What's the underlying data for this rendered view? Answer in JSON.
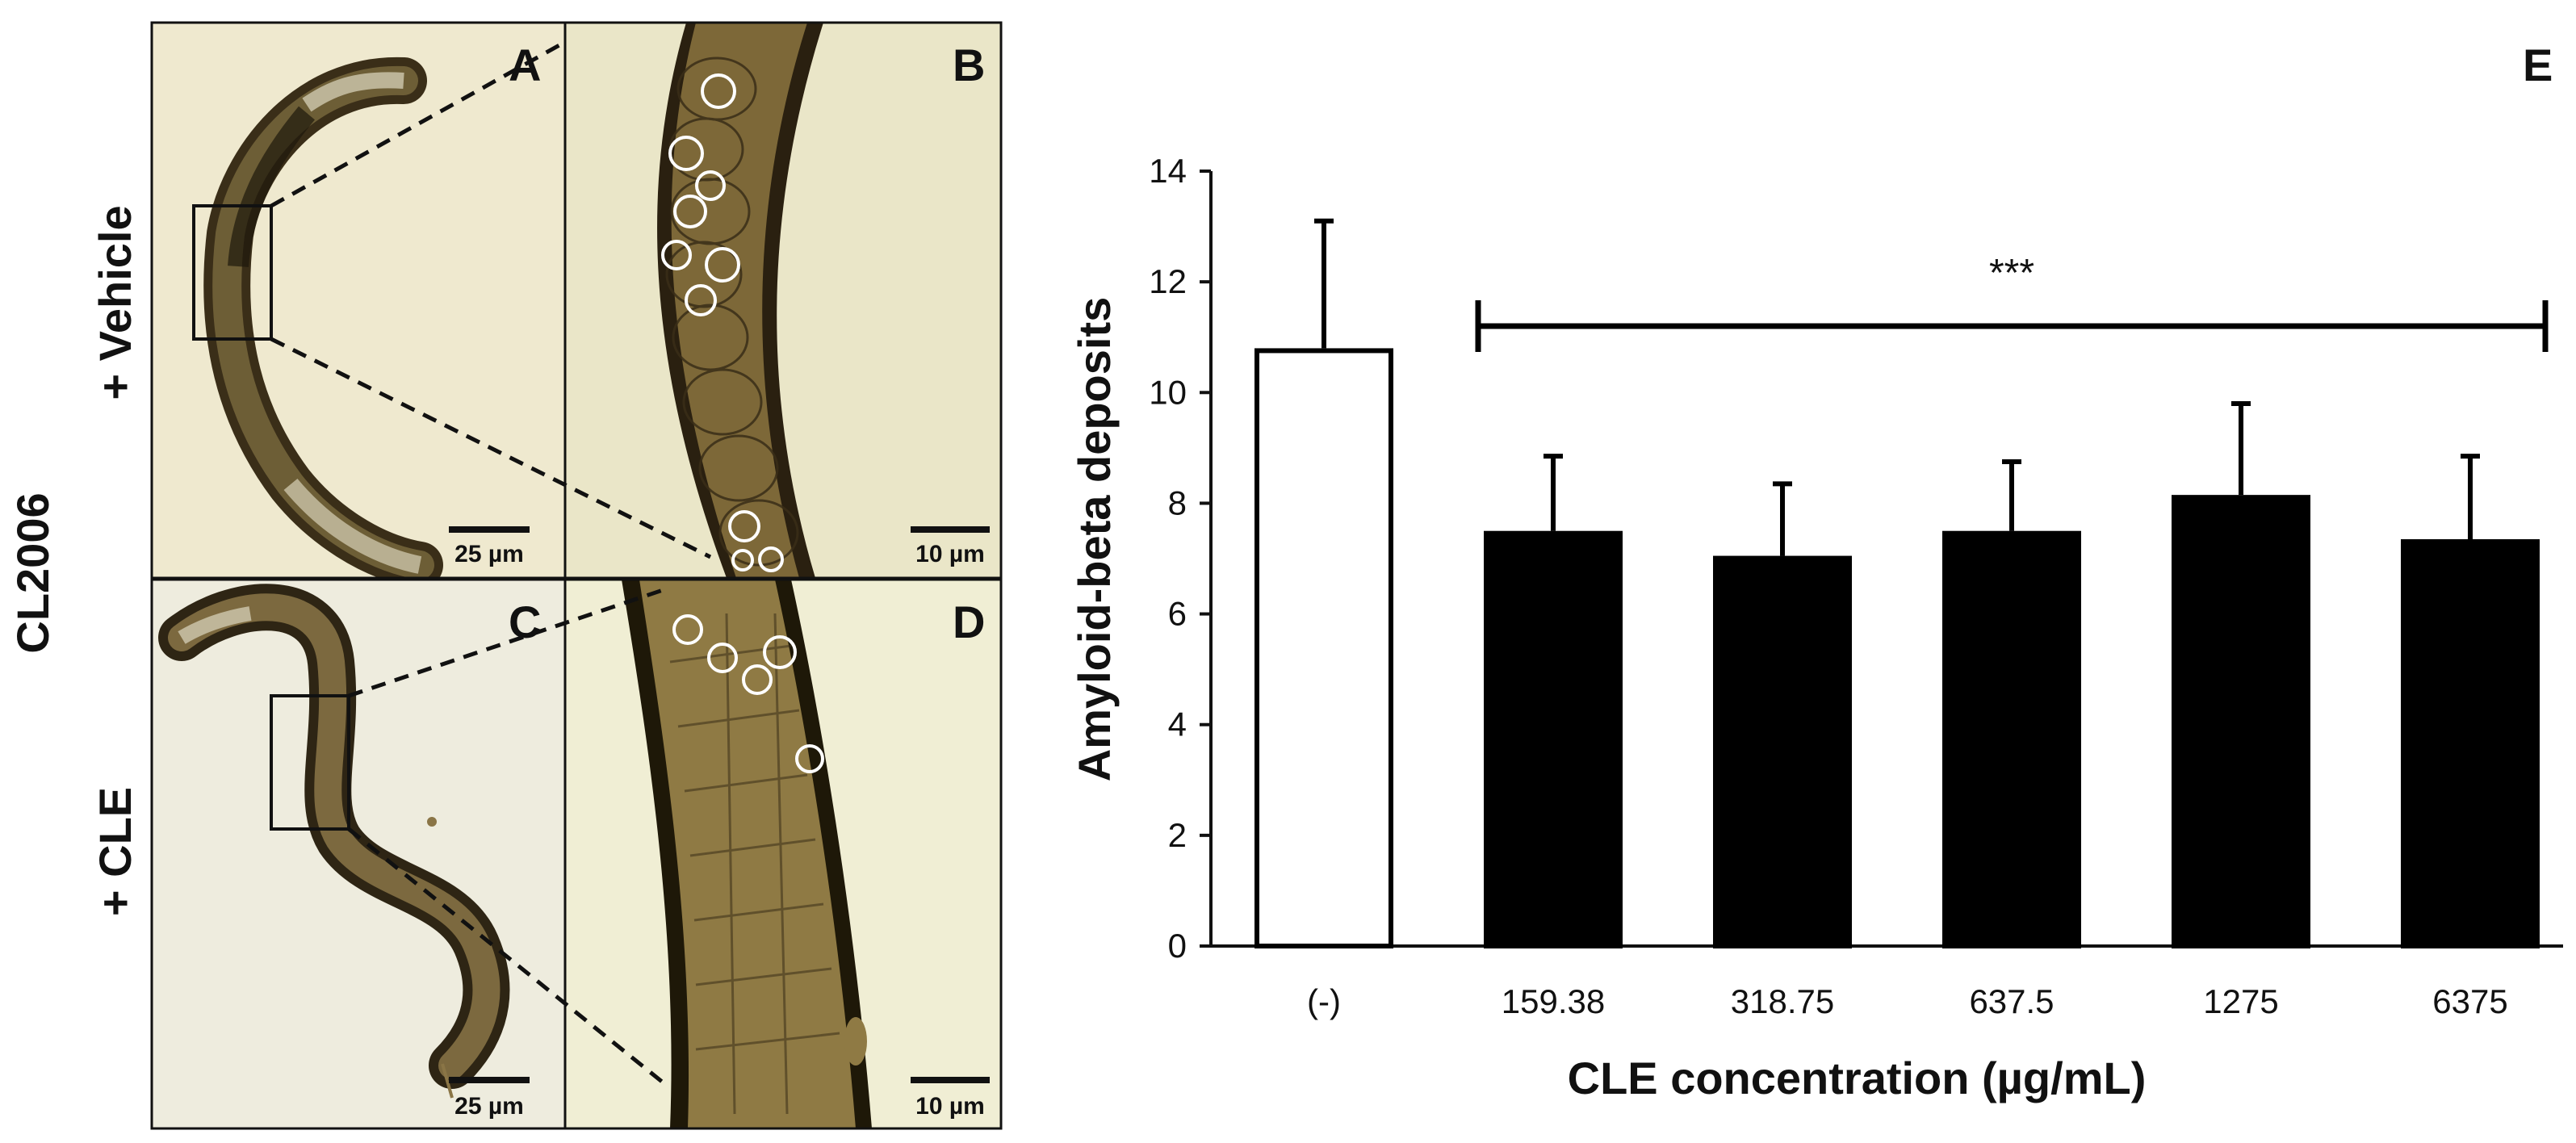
{
  "figure": {
    "strain_label": "CL2006",
    "row_labels": [
      "+ Vehicle",
      "+ CLE"
    ],
    "panels": [
      {
        "letter": "A",
        "scale_bar": "25 µm",
        "image": "whole worm, vehicle-treated"
      },
      {
        "letter": "B",
        "scale_bar": "10 µm",
        "image": "magnified region, vehicle-treated"
      },
      {
        "letter": "C",
        "scale_bar": "25 µm",
        "image": "whole worm, CLE-treated"
      },
      {
        "letter": "D",
        "scale_bar": "10 µm",
        "image": "magnified region, CLE-treated"
      }
    ],
    "chart_panel_letter": "E"
  },
  "colors": {
    "image_bg": "#efe9cf",
    "worm_dark": "#3a2e18",
    "worm_mid": "#7a6a3e",
    "bar_control": "#ffffff",
    "bar_treated": "#000000"
  },
  "chart_data": {
    "type": "bar",
    "title": "",
    "xlabel": "CLE concentration (µg/mL)",
    "ylabel": "Amyloid-beta deposits",
    "categories": [
      "(-)",
      "159.38",
      "318.75",
      "637.5",
      "1275",
      "6375"
    ],
    "values": [
      10.8,
      7.5,
      7.05,
      7.5,
      8.15,
      7.35
    ],
    "error_upper": [
      2.3,
      1.35,
      1.3,
      1.25,
      1.65,
      1.5
    ],
    "bar_fill": [
      "white",
      "black",
      "black",
      "black",
      "black",
      "black"
    ],
    "ylim": [
      0,
      14
    ],
    "yticks": [
      0,
      2,
      4,
      6,
      8,
      10,
      12,
      14
    ],
    "grid": false,
    "legend": "none",
    "significance": {
      "label": "***",
      "from_category": "159.38",
      "to_category": "6375",
      "y": 11.2
    }
  }
}
